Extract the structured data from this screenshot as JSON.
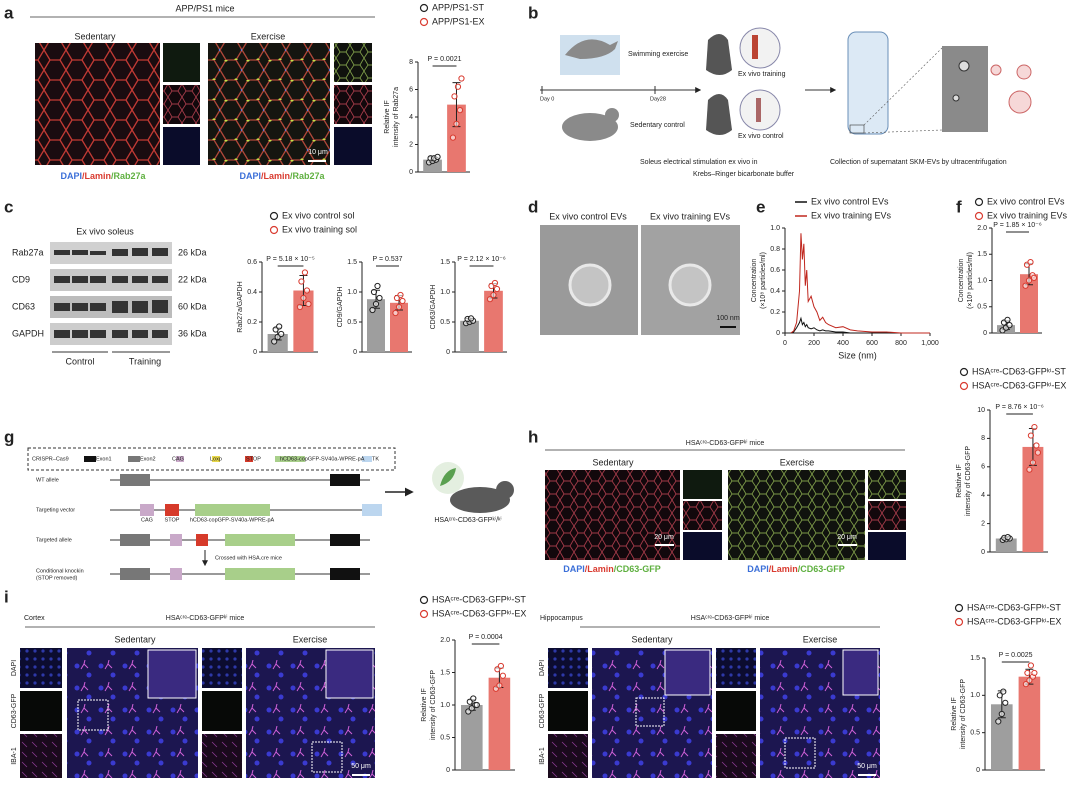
{
  "figure": {
    "a": {
      "letter": "a",
      "title": "APP/PS1 mice",
      "groups": [
        "Sedentary",
        "Exercise"
      ],
      "scale": "10 μm",
      "stains": [
        "DAPI",
        "/Lamin",
        "/Rab27a"
      ]
    },
    "b": {
      "letter": "b",
      "swim": "Swimming exercise",
      "days": [
        "Day 0",
        "Day28"
      ],
      "sedentary": "Sedentary control",
      "training": "Ex vivo training",
      "control": "Ex vivo control",
      "stimulation": [
        "Soleus electrical stimulation ex vivo in",
        "Krebs–Ringer bicarbonate buffer"
      ],
      "collection": "Collection of supernatant SKM-EVs by ultracentrifugation"
    },
    "c": {
      "letter": "c",
      "title": "Ex vivo soleus",
      "proteins": [
        "Rab27a",
        "CD9",
        "CD63",
        "GAPDH"
      ],
      "sizes": [
        "26 kDa",
        "22 kDa",
        "60 kDa",
        "36 kDa"
      ],
      "groups": [
        "Control",
        "Training"
      ]
    },
    "d": {
      "letter": "d",
      "images": [
        "Ex vivo control EVs",
        "Ex vivo training EVs"
      ],
      "scale": "100 nm"
    },
    "e": {
      "letter": "e"
    },
    "f": {
      "letter": "f"
    },
    "g": {
      "letter": "g",
      "legend": [
        "CRISPR–Cas9",
        "Exon1",
        "Exon2",
        "CAG",
        "Loxp",
        "STOP",
        "hCD63-copGFP-SV40a-WPRE-pA",
        "TK"
      ],
      "rows": [
        "WT allele",
        "Targeting vector",
        "Targeted allele"
      ],
      "knockin": [
        "Conditional knockin",
        "(STOP removed)"
      ],
      "vector_labels": [
        "CAG",
        "STOP",
        "hCD63-copGFP-SV40a-WPRE-pA"
      ],
      "cross": "Crossed with HSA.cre mice",
      "mouse": "HSAᶜʳᵉ-CD63-GFPᵏⁱ/ᵏⁱ"
    },
    "h": {
      "letter": "h",
      "title": "HSAᶜʳᵉ-CD63-GFPᵏⁱ mice",
      "groups": [
        "Sedentary",
        "Exercise"
      ],
      "scale": "20 μm",
      "stains": [
        "DAPI",
        "/Lamin",
        "/CD63-GFP"
      ]
    },
    "i": {
      "letter": "i",
      "regions": [
        "Cortex",
        "Hippocampus"
      ],
      "title": "HSAᶜʳᵉ-CD63-GFPᵏⁱ mice",
      "groups": [
        "Sedentary",
        "Exercise"
      ],
      "channels": [
        "DAPI",
        "CD63-GFP",
        "IBA-1"
      ],
      "scale": "50 μm"
    }
  },
  "chart_data": [
    {
      "type": "bar",
      "ylabel": [
        "Relative IF",
        "intensity of Rab27a"
      ],
      "ylim": [
        0,
        8
      ],
      "yticks": [
        0,
        2,
        4,
        6,
        8
      ],
      "annotation": "P = 0.0021",
      "series": [
        {
          "name": "APP/PS1-ST",
          "color": "#9e9e9e",
          "edgecolor": "#222222",
          "values": [
            0.9
          ],
          "errors": [
            0.2
          ],
          "points": [
            0.7,
            0.8,
            0.9,
            1.0,
            1.0,
            1.1
          ]
        },
        {
          "name": "APP/PS1-EX",
          "color": "#e8776f",
          "edgecolor": "#d93b30",
          "values": [
            4.9
          ],
          "errors": [
            1.6
          ],
          "points": [
            2.5,
            3.5,
            4.5,
            5.5,
            6.2,
            6.8
          ]
        }
      ]
    },
    {
      "type": "bar",
      "ylabel": [
        "Rab27a/GAPDH"
      ],
      "ylim": [
        0,
        0.6
      ],
      "yticks": [
        0,
        0.2,
        0.4,
        0.6
      ],
      "annotation": "P = 5.18 × 10⁻⁵",
      "series": [
        {
          "name": "Ex vivo control sol",
          "color": "#9e9e9e",
          "edgecolor": "#222222",
          "values": [
            0.12
          ],
          "errors": [
            0.04
          ],
          "points": [
            0.07,
            0.1,
            0.12,
            0.15,
            0.17
          ]
        },
        {
          "name": "Ex vivo training sol",
          "color": "#e8776f",
          "edgecolor": "#d93b30",
          "values": [
            0.41
          ],
          "errors": [
            0.1
          ],
          "points": [
            0.3,
            0.36,
            0.41,
            0.47,
            0.53,
            0.32
          ]
        }
      ]
    },
    {
      "type": "bar",
      "ylabel": [
        "CD9/GAPDH"
      ],
      "ylim": [
        0,
        1.5
      ],
      "yticks": [
        0,
        0.5,
        {
          "value": 1,
          "label": "1.0"
        },
        1.5
      ],
      "annotation": "P = 0.537",
      "series": [
        {
          "color": "#9e9e9e",
          "edgecolor": "#222222",
          "values": [
            0.88
          ],
          "errors": [
            0.15
          ],
          "points": [
            0.7,
            0.8,
            0.9,
            1.0,
            1.1
          ]
        },
        {
          "color": "#e8776f",
          "edgecolor": "#d93b30",
          "values": [
            0.82
          ],
          "errors": [
            0.12
          ],
          "points": [
            0.65,
            0.75,
            0.85,
            0.9,
            0.95
          ]
        }
      ]
    },
    {
      "type": "bar",
      "ylabel": [
        "CD63/GAPDH"
      ],
      "ylim": [
        0,
        1.5
      ],
      "yticks": [
        0,
        0.5,
        {
          "value": 1,
          "label": "1.0"
        },
        1.5
      ],
      "annotation": "P = 2.12 × 10⁻⁶",
      "series": [
        {
          "color": "#9e9e9e",
          "edgecolor": "#222222",
          "values": [
            0.52
          ],
          "errors": [
            0.04
          ],
          "points": [
            0.48,
            0.5,
            0.52,
            0.55,
            0.56
          ]
        },
        {
          "color": "#e8776f",
          "edgecolor": "#d93b30",
          "values": [
            1.02
          ],
          "errors": [
            0.12
          ],
          "points": [
            0.88,
            0.95,
            1.05,
            1.1,
            1.15
          ]
        }
      ]
    },
    {
      "type": "line",
      "ylabel": [
        "Concentration",
        "(×10⁸ particles/ml)"
      ],
      "xlabel": "Size (nm)",
      "ylim": [
        0,
        1
      ],
      "yticks": [
        0,
        0.2,
        0.4,
        0.6,
        0.8,
        {
          "value": 1,
          "label": "1.0"
        }
      ],
      "xlim": [
        0,
        1000
      ],
      "xticks": [
        0,
        200,
        400,
        600,
        800,
        {
          "value": 1000,
          "label": "1,000"
        }
      ],
      "x": [
        40,
        60,
        80,
        100,
        110,
        120,
        130,
        140,
        150,
        160,
        180,
        200,
        220,
        240,
        260,
        280,
        300,
        350,
        400,
        450,
        500,
        600,
        700,
        800,
        900,
        1000
      ],
      "series": [
        {
          "name": "Ex vivo control EVs",
          "color": "#111111",
          "values": [
            0,
            0.01,
            0.05,
            0.1,
            0.14,
            0.08,
            0.1,
            0.06,
            0.08,
            0.05,
            0.04,
            0.05,
            0.03,
            0.02,
            0.03,
            0.02,
            0.02,
            0.01,
            0.01,
            0,
            0,
            0,
            0,
            0,
            0,
            0
          ]
        },
        {
          "name": "Ex vivo training EVs",
          "color": "#c0271e",
          "values": [
            0,
            0.02,
            0.1,
            0.4,
            0.95,
            0.7,
            0.85,
            0.45,
            0.6,
            0.3,
            0.35,
            0.25,
            0.2,
            0.12,
            0.15,
            0.1,
            0.08,
            0.05,
            0.06,
            0.03,
            0.02,
            0.01,
            0.01,
            0,
            0,
            0
          ]
        }
      ]
    },
    {
      "type": "bar",
      "ylabel": [
        "Concentration",
        "(×10⁸ particles/ml)"
      ],
      "ylim": [
        0,
        2
      ],
      "yticks": [
        0,
        0.5,
        {
          "value": 1,
          "label": "1.0"
        },
        1.5,
        {
          "value": 2,
          "label": "2.0"
        }
      ],
      "annotation": "P = 1.85 × 10⁻⁶",
      "series": [
        {
          "name": "Ex vivo control EVs",
          "color": "#9e9e9e",
          "edgecolor": "#222222",
          "values": [
            0.15
          ],
          "errors": [
            0.08
          ],
          "points": [
            0.05,
            0.1,
            0.15,
            0.2,
            0.25
          ]
        },
        {
          "name": "Ex vivo training EVs",
          "color": "#e8776f",
          "edgecolor": "#d93b30",
          "values": [
            1.12
          ],
          "errors": [
            0.2
          ],
          "points": [
            0.9,
            1.0,
            1.1,
            1.3,
            1.35,
            1.05
          ]
        }
      ]
    },
    {
      "type": "bar",
      "ylabel": [
        "Relative IF",
        "intensity of CD63-GFP"
      ],
      "ylim": [
        0,
        10
      ],
      "yticks": [
        0,
        2,
        4,
        6,
        8,
        10
      ],
      "annotation": "P = 8.76 × 10⁻⁶",
      "series": [
        {
          "name": "HSAᶜʳᵉ-CD63-GFPᵏⁱ-ST",
          "color": "#9e9e9e",
          "edgecolor": "#222222",
          "values": [
            0.95
          ],
          "errors": [
            0.1
          ],
          "points": [
            0.85,
            0.9,
            0.95,
            1.0,
            1.05
          ]
        },
        {
          "name": "HSAᶜʳᵉ-CD63-GFPᵏⁱ-EX",
          "color": "#e8776f",
          "edgecolor": "#d93b30",
          "values": [
            7.4
          ],
          "errors": [
            1.3
          ],
          "points": [
            5.8,
            6.3,
            7.5,
            8.2,
            8.8,
            7.0
          ]
        }
      ]
    },
    {
      "type": "bar",
      "ylabel": [
        "Relative IF",
        "intensity of CD63-GFP"
      ],
      "ylim": [
        0,
        2
      ],
      "yticks": [
        0,
        0.5,
        {
          "value": 1,
          "label": "1.0"
        },
        1.5,
        {
          "value": 2,
          "label": "2.0"
        }
      ],
      "annotation": "P = 0.0004",
      "series": [
        {
          "name": "HSAᶜʳᵉ-CD63-GFPᵏⁱ-ST",
          "color": "#9e9e9e",
          "edgecolor": "#222222",
          "values": [
            1.0
          ],
          "errors": [
            0.08
          ],
          "points": [
            0.9,
            0.95,
            1.0,
            1.05,
            1.1,
            1.0
          ]
        },
        {
          "name": "HSAᶜʳᵉ-CD63-GFPᵏⁱ-EX",
          "color": "#e8776f",
          "edgecolor": "#d93b30",
          "values": [
            1.42
          ],
          "errors": [
            0.15
          ],
          "points": [
            1.25,
            1.3,
            1.45,
            1.55,
            1.6
          ]
        }
      ]
    },
    {
      "type": "bar",
      "ylabel": [
        "Relative IF",
        "intensity of CD63-GFP"
      ],
      "ylim": [
        0,
        1.5
      ],
      "yticks": [
        0,
        0.5,
        {
          "value": 1,
          "label": "1.0"
        },
        1.5
      ],
      "annotation": "P = 0.0025",
      "series": [
        {
          "name": "HSAᶜʳᵉ-CD63-GFPᵏⁱ-ST",
          "color": "#9e9e9e",
          "edgecolor": "#222222",
          "values": [
            0.88
          ],
          "errors": [
            0.18
          ],
          "points": [
            0.65,
            0.75,
            0.9,
            1.0,
            1.05
          ]
        },
        {
          "name": "HSAᶜʳᵉ-CD63-GFPᵏⁱ-EX",
          "color": "#e8776f",
          "edgecolor": "#d93b30",
          "values": [
            1.25
          ],
          "errors": [
            0.1
          ],
          "points": [
            1.15,
            1.2,
            1.25,
            1.3,
            1.4,
            1.3
          ]
        }
      ]
    }
  ]
}
